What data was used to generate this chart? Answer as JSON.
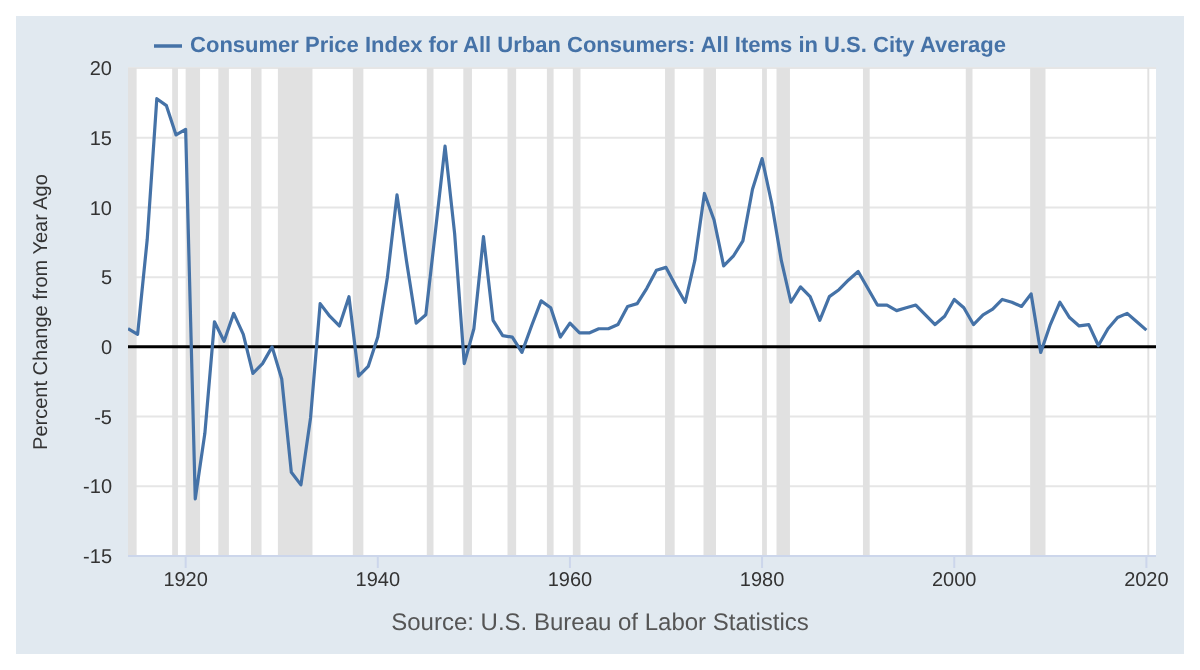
{
  "chart_data": {
    "type": "line",
    "ylabel": "Percent Change from Year Ago",
    "annotations": [
      "Source: U.S. Bureau of Labor Statistics"
    ],
    "x": [
      1914,
      1915,
      1916,
      1917,
      1918,
      1919,
      1920,
      1921,
      1922,
      1923,
      1924,
      1925,
      1926,
      1927,
      1928,
      1929,
      1930,
      1931,
      1932,
      1933,
      1934,
      1935,
      1936,
      1937,
      1938,
      1939,
      1940,
      1941,
      1942,
      1943,
      1944,
      1945,
      1946,
      1947,
      1948,
      1949,
      1950,
      1951,
      1952,
      1953,
      1954,
      1955,
      1956,
      1957,
      1958,
      1959,
      1960,
      1961,
      1962,
      1963,
      1964,
      1965,
      1966,
      1967,
      1968,
      1969,
      1970,
      1971,
      1972,
      1973,
      1974,
      1975,
      1976,
      1977,
      1978,
      1979,
      1980,
      1981,
      1982,
      1983,
      1984,
      1985,
      1986,
      1987,
      1988,
      1989,
      1990,
      1991,
      1992,
      1993,
      1994,
      1995,
      1996,
      1997,
      1998,
      1999,
      2000,
      2001,
      2002,
      2003,
      2004,
      2005,
      2006,
      2007,
      2008,
      2009,
      2010,
      2011,
      2012,
      2013,
      2014,
      2015,
      2016,
      2017,
      2018,
      2019,
      2020
    ],
    "series": [
      {
        "name": "Consumer Price Index for All Urban Consumers: All Items in U.S. City Average",
        "color": "#4572a7",
        "values": [
          1.3,
          0.9,
          7.7,
          17.8,
          17.3,
          15.2,
          15.6,
          -10.9,
          -6.2,
          1.8,
          0.4,
          2.4,
          0.9,
          -1.9,
          -1.2,
          0.0,
          -2.3,
          -9.0,
          -9.9,
          -5.1,
          3.1,
          2.2,
          1.5,
          3.6,
          -2.1,
          -1.4,
          0.7,
          5.0,
          10.9,
          6.1,
          1.7,
          2.3,
          8.3,
          14.4,
          8.1,
          -1.2,
          1.3,
          7.9,
          1.9,
          0.8,
          0.7,
          -0.4,
          1.5,
          3.3,
          2.8,
          0.7,
          1.7,
          1.0,
          1.0,
          1.3,
          1.3,
          1.6,
          2.9,
          3.1,
          4.2,
          5.5,
          5.7,
          4.4,
          3.2,
          6.2,
          11.0,
          9.1,
          5.8,
          6.5,
          7.6,
          11.3,
          13.5,
          10.3,
          6.2,
          3.2,
          4.3,
          3.6,
          1.9,
          3.6,
          4.1,
          4.8,
          5.4,
          4.2,
          3.0,
          3.0,
          2.6,
          2.8,
          3.0,
          2.3,
          1.6,
          2.2,
          3.4,
          2.8,
          1.6,
          2.3,
          2.7,
          3.4,
          3.2,
          2.9,
          3.8,
          -0.4,
          1.6,
          3.2,
          2.1,
          1.5,
          1.6,
          0.1,
          1.3,
          2.1,
          2.4,
          1.8,
          1.2
        ]
      }
    ],
    "xlim": [
      1914,
      2021
    ],
    "xticks": [
      1920,
      1940,
      1960,
      1980,
      2000,
      2020
    ],
    "ylim": [
      -15,
      20
    ],
    "yticks": [
      -15,
      -10,
      -5,
      0,
      5,
      10,
      15,
      20
    ],
    "grid": "y",
    "legend": "top",
    "marker": "none",
    "line_style": "solid",
    "ref_lines": [
      {
        "axis": "y",
        "value": 0,
        "color": "#000000"
      }
    ],
    "bands": [
      {
        "axis": "x",
        "from": 1914.0,
        "to": 1914.9,
        "color": "#e1e1e1"
      },
      {
        "axis": "x",
        "from": 1918.6,
        "to": 1919.2,
        "color": "#e1e1e1"
      },
      {
        "axis": "x",
        "from": 1920.0,
        "to": 1921.5,
        "color": "#e1e1e1"
      },
      {
        "axis": "x",
        "from": 1923.4,
        "to": 1924.5,
        "color": "#e1e1e1"
      },
      {
        "axis": "x",
        "from": 1926.8,
        "to": 1927.9,
        "color": "#e1e1e1"
      },
      {
        "axis": "x",
        "from": 1929.6,
        "to": 1933.2,
        "color": "#e1e1e1"
      },
      {
        "axis": "x",
        "from": 1937.4,
        "to": 1938.5,
        "color": "#e1e1e1"
      },
      {
        "axis": "x",
        "from": 1945.1,
        "to": 1945.8,
        "color": "#e1e1e1"
      },
      {
        "axis": "x",
        "from": 1948.9,
        "to": 1949.8,
        "color": "#e1e1e1"
      },
      {
        "axis": "x",
        "from": 1953.5,
        "to": 1954.4,
        "color": "#e1e1e1"
      },
      {
        "axis": "x",
        "from": 1957.6,
        "to": 1958.3,
        "color": "#e1e1e1"
      },
      {
        "axis": "x",
        "from": 1960.3,
        "to": 1961.1,
        "color": "#e1e1e1"
      },
      {
        "axis": "x",
        "from": 1969.9,
        "to": 1970.9,
        "color": "#e1e1e1"
      },
      {
        "axis": "x",
        "from": 1973.9,
        "to": 1975.2,
        "color": "#e1e1e1"
      },
      {
        "axis": "x",
        "from": 1980.0,
        "to": 1980.5,
        "color": "#e1e1e1"
      },
      {
        "axis": "x",
        "from": 1981.5,
        "to": 1982.9,
        "color": "#e1e1e1"
      },
      {
        "axis": "x",
        "from": 1990.5,
        "to": 1991.2,
        "color": "#e1e1e1"
      },
      {
        "axis": "x",
        "from": 2001.2,
        "to": 2001.9,
        "color": "#e1e1e1"
      },
      {
        "axis": "x",
        "from": 2007.9,
        "to": 2009.5,
        "color": "#e1e1e1"
      },
      {
        "axis": "x",
        "from": 2020.1,
        "to": 2020.3,
        "color": "#e1e1e1"
      }
    ]
  }
}
